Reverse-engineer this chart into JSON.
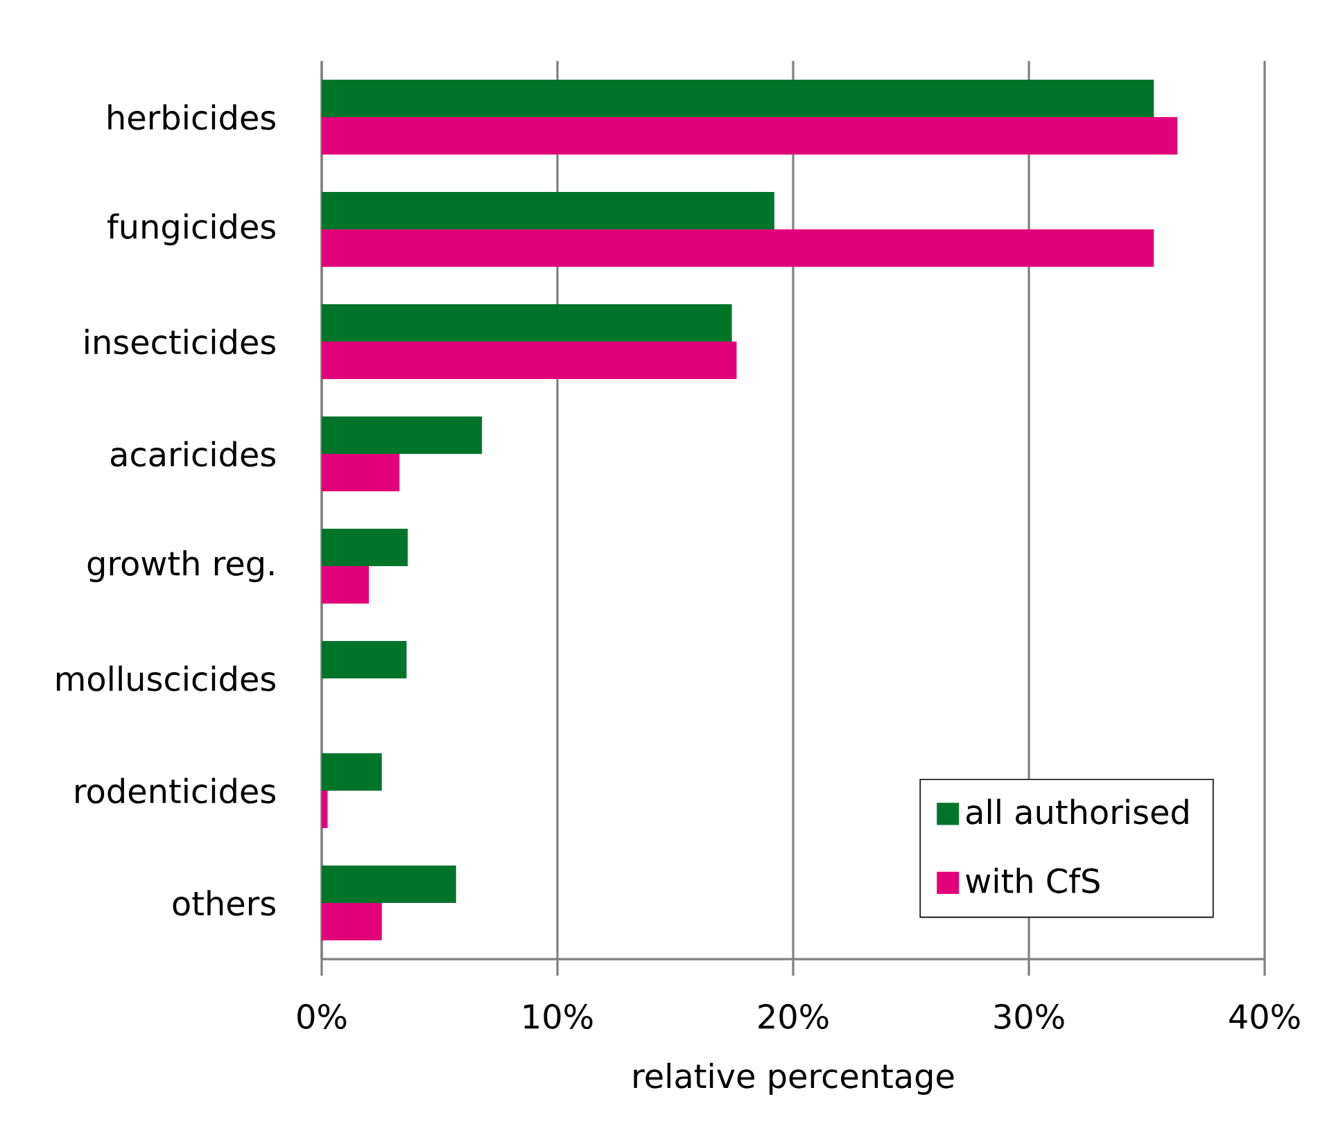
{
  "chart_data": {
    "type": "bar",
    "orientation": "horizontal",
    "xlabel": "relative percentage",
    "categories": [
      "herbicides",
      "fungicides",
      "insecticides",
      "acaricides",
      "growth reg.",
      "molluscicides",
      "rodenticides",
      "others"
    ],
    "series": [
      {
        "name": "all authorised",
        "color": "#00752a",
        "values": [
          35.3,
          19.2,
          17.4,
          6.8,
          3.65,
          3.6,
          2.55,
          5.7
        ]
      },
      {
        "name": "with CfS",
        "color": "#e2007a",
        "values": [
          36.3,
          35.3,
          17.6,
          3.3,
          2.0,
          null,
          0.25,
          2.55
        ]
      }
    ],
    "xlim": [
      0,
      40
    ],
    "xticks": [
      {
        "value": 0,
        "label": "0%"
      },
      {
        "value": 10,
        "label": "10%"
      },
      {
        "value": 20,
        "label": "20%"
      },
      {
        "value": 30,
        "label": "30%"
      },
      {
        "value": 40,
        "label": "40%"
      }
    ],
    "grid": "x",
    "legend": "bottom right"
  }
}
